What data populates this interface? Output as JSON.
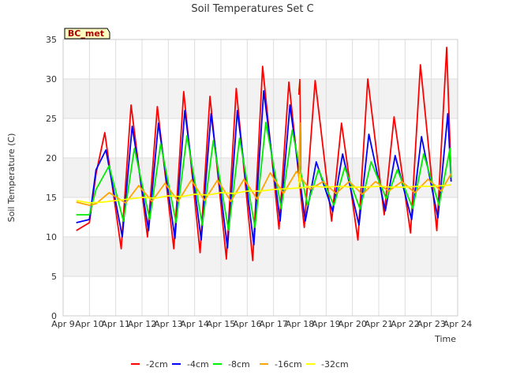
{
  "colors": {
    "-2cm": "#ff0000",
    "-4cm": "#0000ff",
    "-8cm": "#00ee00",
    "-16cm": "#ffa500",
    "-32cm": "#ffff00",
    "band": "#f2f2f2",
    "grid": "#dddddd",
    "badge_fill": "#ffffc0",
    "badge_text": "#aa0000"
  },
  "chart_data": {
    "type": "line",
    "title": "Soil Temperatures Set C",
    "xlabel": "Time",
    "ylabel": "Soil Temperature (C)",
    "badge": "BC_met",
    "x_domain": [
      "2024-04-09",
      "2024-04-24"
    ],
    "x_ticks": [
      "Apr 9",
      "Apr 10",
      "Apr 11",
      "Apr 12",
      "Apr 13",
      "Apr 14",
      "Apr 15",
      "Apr 16",
      "Apr 17",
      "Apr 18",
      "Apr 19",
      "Apr 20",
      "Apr 21",
      "Apr 22",
      "Apr 23",
      "Apr 24"
    ],
    "ylim": [
      0,
      35
    ],
    "y_ticks": [
      "0",
      "5",
      "10",
      "15",
      "20",
      "25",
      "30",
      "35"
    ],
    "grid": true,
    "legend_position": "bottom",
    "series": [
      {
        "name": "-2cm",
        "x": [
          "Apr 9 12:00",
          "Apr 10 00:00",
          "Apr 10 06:00",
          "Apr 10 14:00",
          "Apr 11 05:00",
          "Apr 11 14:00",
          "Apr 12 05:00",
          "Apr 12 14:00",
          "Apr 13 05:00",
          "Apr 13 14:00",
          "Apr 14 05:00",
          "Apr 14 14:00",
          "Apr 15 05:00",
          "Apr 15 14:00",
          "Apr 16 05:00",
          "Apr 16 14:00",
          "Apr 17 05:00",
          "Apr 17 14:00",
          "Apr 18 04:00",
          "Apr 18 14:00",
          "Apr 19 05:00",
          "Apr 19 14:00",
          "Apr 20 05:00",
          "Apr 20 14:00",
          "Apr 21 05:00",
          "Apr 21 14:00",
          "Apr 22 05:00",
          "Apr 22 14:00",
          "Apr 23 05:00",
          "Apr 23 14:00",
          "Apr 23 18:00"
        ],
        "y": [
          10.8,
          11.8,
          18,
          23.2,
          8.5,
          26.7,
          10,
          26.5,
          8.5,
          28.4,
          8,
          27.8,
          7.2,
          28.8,
          7,
          31.6,
          11,
          29.6,
          11.2,
          29.8,
          12,
          24.4,
          9.6,
          30,
          12.8,
          25.2,
          10.5,
          31.8,
          10.8,
          34,
          17.5
        ]
      },
      {
        "name": "-4cm",
        "x": [
          "Apr 9 12:00",
          "Apr 10 00:00",
          "Apr 10 06:00",
          "Apr 10 15:00",
          "Apr 11 06:00",
          "Apr 11 15:00",
          "Apr 12 06:00",
          "Apr 12 15:00",
          "Apr 13 06:00",
          "Apr 13 15:00",
          "Apr 14 06:00",
          "Apr 14 15:00",
          "Apr 15 06:00",
          "Apr 15 15:00",
          "Apr 16 06:00",
          "Apr 16 15:00",
          "Apr 17 06:00",
          "Apr 17 15:00",
          "Apr 18 05:00",
          "Apr 18 15:00",
          "Apr 19 06:00",
          "Apr 19 15:00",
          "Apr 20 06:00",
          "Apr 20 15:00",
          "Apr 21 06:00",
          "Apr 21 15:00",
          "Apr 22 06:00",
          "Apr 22 15:00",
          "Apr 23 06:00",
          "Apr 23 15:00",
          "Apr 23 18:00"
        ],
        "y": [
          11.8,
          12.2,
          18.5,
          21,
          10,
          24,
          10.8,
          24.4,
          9.8,
          26,
          9.6,
          25.6,
          8.6,
          26,
          9,
          28.5,
          12,
          26.7,
          12,
          19.5,
          13.2,
          20.5,
          11.5,
          23,
          13.3,
          20.3,
          12.2,
          22.7,
          12.4,
          25.6,
          17
        ]
      },
      {
        "name": "-8cm",
        "x": [
          "Apr 9 12:00",
          "Apr 10 00:00",
          "Apr 10 06:00",
          "Apr 10 18:00",
          "Apr 11 07:00",
          "Apr 11 17:00",
          "Apr 12 07:00",
          "Apr 12 17:00",
          "Apr 13 07:00",
          "Apr 13 17:00",
          "Apr 14 07:00",
          "Apr 14 17:00",
          "Apr 15 07:00",
          "Apr 15 17:00",
          "Apr 16 07:00",
          "Apr 16 17:00",
          "Apr 17 07:00",
          "Apr 17 17:00",
          "Apr 18 07:00",
          "Apr 18 17:00",
          "Apr 19 07:00",
          "Apr 19 17:00",
          "Apr 20 07:00",
          "Apr 20 17:00",
          "Apr 21 07:00",
          "Apr 21 17:00",
          "Apr 22 07:00",
          "Apr 22 17:00",
          "Apr 23 07:00",
          "Apr 23 17:00",
          "Apr 23 18:00"
        ],
        "y": [
          12.8,
          12.8,
          16,
          19,
          12,
          21.2,
          12.2,
          21.8,
          11.8,
          22.8,
          11.5,
          22.2,
          10.8,
          22.5,
          11.2,
          24.5,
          13.6,
          23.5,
          14,
          18.5,
          14,
          18.8,
          13.5,
          19.5,
          14.8,
          18.5,
          13.6,
          20.5,
          14,
          21.2,
          17.5
        ]
      },
      {
        "name": "-16cm",
        "x": [
          "Apr 9 12:00",
          "Apr 10 00:00",
          "Apr 10 06:00",
          "Apr 10 18:00",
          "Apr 11 09:00",
          "Apr 11 21:00",
          "Apr 12 09:00",
          "Apr 12 21:00",
          "Apr 13 09:00",
          "Apr 13 21:00",
          "Apr 14 09:00",
          "Apr 14 21:00",
          "Apr 15 09:00",
          "Apr 15 21:00",
          "Apr 16 09:00",
          "Apr 16 21:00",
          "Apr 17 09:00",
          "Apr 17 21:00",
          "Apr 18 09:00",
          "Apr 18 21:00",
          "Apr 19 09:00",
          "Apr 19 21:00",
          "Apr 20 09:00",
          "Apr 20 21:00",
          "Apr 21 09:00",
          "Apr 21 21:00",
          "Apr 22 09:00",
          "Apr 22 21:00",
          "Apr 23 09:00",
          "Apr 23 18:00"
        ],
        "y": [
          14.4,
          14,
          14.2,
          15.6,
          14.3,
          16.5,
          14.5,
          16.8,
          14.5,
          17.2,
          14.6,
          17.2,
          14.5,
          17.3,
          14.8,
          18.1,
          15.5,
          18.3,
          16,
          17,
          15.5,
          17,
          15.4,
          17,
          15.8,
          17,
          15.6,
          17.3,
          15.8,
          18
        ]
      },
      {
        "name": "-32cm",
        "x": [
          "Apr 9 12:00",
          "Apr 10 00:00",
          "Apr 10 12:00",
          "Apr 11 00:00",
          "Apr 11 12:00",
          "Apr 12 00:00",
          "Apr 12 12:00",
          "Apr 13 00:00",
          "Apr 13 12:00",
          "Apr 14 00:00",
          "Apr 14 12:00",
          "Apr 15 00:00",
          "Apr 15 12:00",
          "Apr 16 00:00",
          "Apr 16 12:00",
          "Apr 17 00:00",
          "Apr 17 12:00",
          "Apr 18 00:00",
          "Apr 18 12:00",
          "Apr 19 00:00",
          "Apr 19 12:00",
          "Apr 20 00:00",
          "Apr 20 12:00",
          "Apr 21 00:00",
          "Apr 21 12:00",
          "Apr 22 00:00",
          "Apr 22 12:00",
          "Apr 23 00:00",
          "Apr 23 12:00",
          "Apr 23 18:00"
        ],
        "y": [
          14.6,
          14.3,
          14.4,
          14.6,
          14.8,
          15,
          14.9,
          15.2,
          15.1,
          15.4,
          15.3,
          15.6,
          15.5,
          15.8,
          15.8,
          16,
          16.1,
          16.2,
          16.4,
          16.3,
          16.4,
          16.3,
          16.3,
          16.4,
          16.3,
          16.3,
          16.4,
          16.4,
          16.5,
          16.6
        ]
      }
    ],
    "spikes": [
      {
        "series": "-8cm",
        "x": [
          "Apr 17 23:00",
          "Apr 18 00:00",
          "Apr 18 01:00"
        ],
        "y": [
          28.5,
          29.7,
          17.5
        ]
      },
      {
        "series": "-2cm",
        "x": [
          "Apr 17 23:00",
          "Apr 18 00:00",
          "Apr 18 01:00"
        ],
        "y": [
          28,
          30,
          18.5
        ]
      },
      {
        "series": "-16cm",
        "x": [
          "Apr 17 23:00",
          "Apr 18 00:00",
          "Apr 18 01:00"
        ],
        "y": [
          17,
          24.5,
          17
        ]
      },
      {
        "series": "-32cm",
        "x": [
          "Apr 17 23:00",
          "Apr 18 00:00",
          "Apr 18 01:00"
        ],
        "y": [
          16.2,
          18,
          16.3
        ]
      }
    ]
  }
}
